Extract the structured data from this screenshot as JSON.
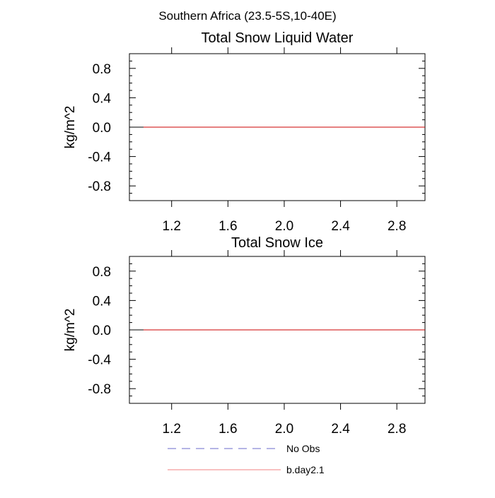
{
  "figure": {
    "title": "Southern Africa (23.5-5S,10-40E)"
  },
  "chart_data": [
    {
      "type": "line",
      "title": "Total Snow Liquid Water",
      "xlabel": "",
      "ylabel": "kg/m^2",
      "xlim": [
        0.9,
        3.0
      ],
      "ylim": [
        -1.0,
        1.0
      ],
      "xticks": [
        1.2,
        1.6,
        2.0,
        2.4,
        2.8
      ],
      "xtick_labels": [
        "1.2",
        "1.6",
        "2.0",
        "2.4",
        "2.8"
      ],
      "yticks": [
        0.8,
        0.4,
        0.0,
        -0.4,
        -0.8
      ],
      "ytick_labels": [
        "0.8",
        "0.4",
        "0.0",
        "-0.4",
        "-0.8"
      ],
      "reference_line_y": 0.0,
      "series": [
        {
          "name": "b.day2.1",
          "color": "#cc0000",
          "x": [
            1.0,
            3.0
          ],
          "y": [
            0.0,
            0.0
          ]
        }
      ]
    },
    {
      "type": "line",
      "title": "Total Snow Ice",
      "xlabel": "",
      "ylabel": "kg/m^2",
      "xlim": [
        0.9,
        3.0
      ],
      "ylim": [
        -1.0,
        1.0
      ],
      "xticks": [
        1.2,
        1.6,
        2.0,
        2.4,
        2.8
      ],
      "xtick_labels": [
        "1.2",
        "1.6",
        "2.0",
        "2.4",
        "2.8"
      ],
      "yticks": [
        0.8,
        0.4,
        0.0,
        -0.4,
        -0.8
      ],
      "ytick_labels": [
        "0.8",
        "0.4",
        "0.0",
        "-0.4",
        "-0.8"
      ],
      "reference_line_y": 0.0,
      "series": [
        {
          "name": "b.day2.1",
          "color": "#cc0000",
          "x": [
            1.0,
            3.0
          ],
          "y": [
            0.0,
            0.0
          ]
        }
      ]
    }
  ],
  "legend": {
    "placement": "bottom",
    "entries": [
      {
        "label": "No Obs",
        "color": "#6a6acb",
        "style": "dashed"
      },
      {
        "label": "b.day2.1",
        "color": "#f08080",
        "style": "solid"
      }
    ]
  }
}
